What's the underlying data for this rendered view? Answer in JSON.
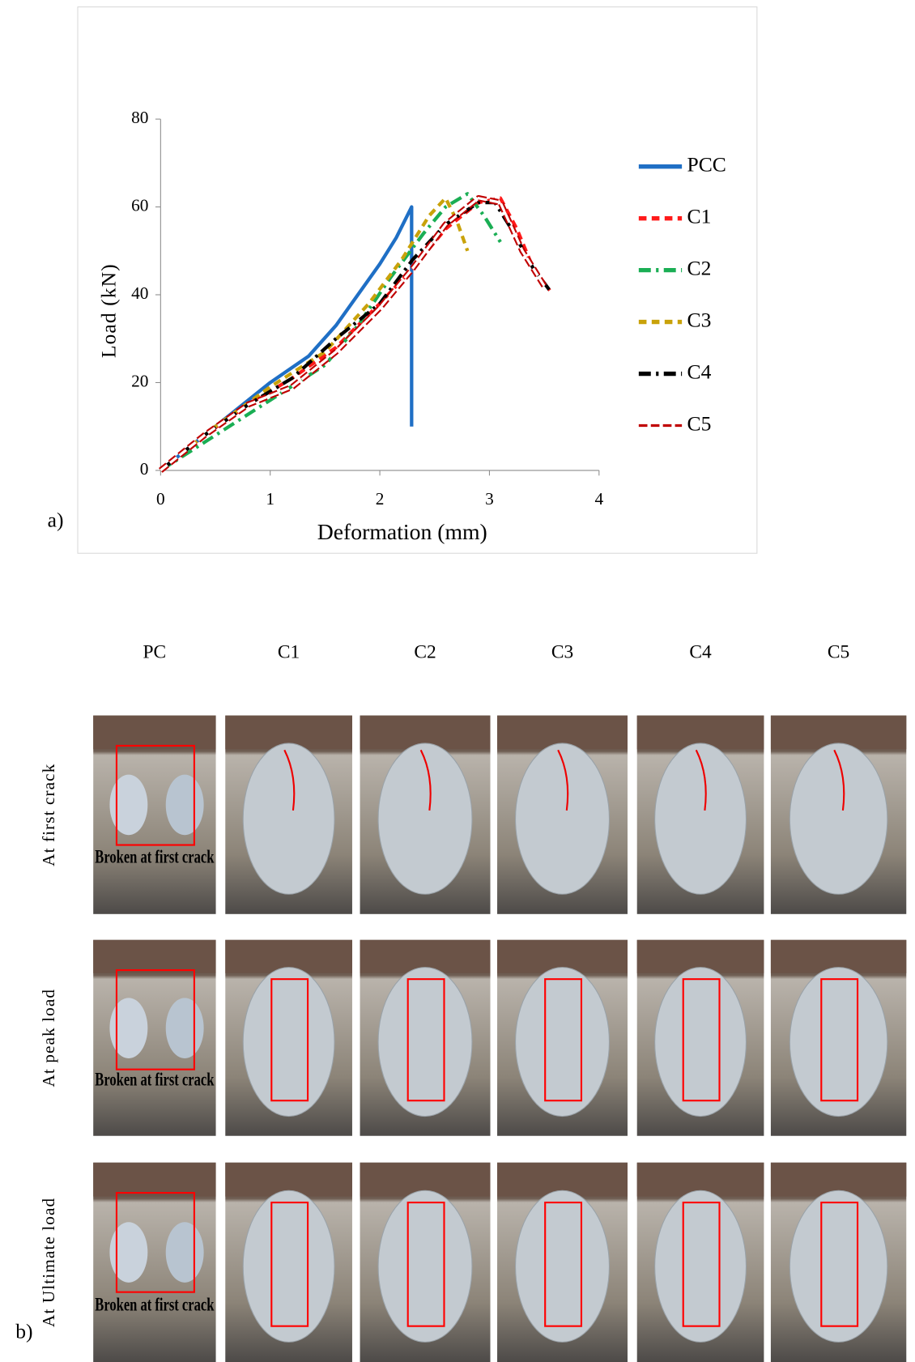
{
  "chart_data": {
    "type": "line",
    "x_label": "Deformation (mm)",
    "y_label": "Load (kN)",
    "xlim": [
      0,
      4
    ],
    "xticks": [
      0,
      1,
      2,
      3,
      4
    ],
    "ylim": [
      0,
      80
    ],
    "yticks": [
      0,
      20,
      40,
      60,
      80
    ],
    "grid": false,
    "legend": "right",
    "series": [
      {
        "name": "PCC",
        "color": "#1f6fc5",
        "style": "solid",
        "x": [
          0,
          0.5,
          1,
          1.35,
          1.6,
          1.8,
          2,
          2.15,
          2.29,
          2.29
        ],
        "values": [
          0,
          10,
          20,
          26,
          33,
          40,
          47,
          53,
          60,
          10
        ]
      },
      {
        "name": "C1",
        "color": "#ff1a1a",
        "style": "dashed",
        "x": [
          0,
          0.4,
          0.8,
          1.2,
          1.6,
          2,
          2.3,
          2.6,
          2.9,
          3.1,
          3.25,
          3.4,
          3.55
        ],
        "values": [
          0,
          8,
          15,
          21,
          28,
          38,
          46,
          55,
          61,
          62,
          55,
          46,
          41
        ]
      },
      {
        "name": "C2",
        "color": "#1aae54",
        "style": "dash-dot",
        "x": [
          0,
          0.5,
          1,
          1.5,
          1.8,
          2.1,
          2.4,
          2.6,
          2.8,
          2.95,
          3.1
        ],
        "values": [
          0,
          8,
          16,
          24,
          33,
          44,
          54,
          60,
          63,
          58,
          52
        ]
      },
      {
        "name": "C3",
        "color": "#c9a20a",
        "style": "dashed",
        "x": [
          0,
          0.5,
          1,
          1.5,
          1.9,
          2.2,
          2.45,
          2.6,
          2.7,
          2.8
        ],
        "values": [
          0,
          10,
          19,
          27,
          38,
          48,
          58,
          62,
          57,
          50
        ]
      },
      {
        "name": "C4",
        "color": "#000000",
        "style": "dash-dot",
        "x": [
          0,
          0.4,
          0.8,
          1.2,
          1.6,
          2,
          2.3,
          2.6,
          2.9,
          3.05,
          3.2,
          3.4,
          3.55
        ],
        "values": [
          0,
          8,
          15,
          21,
          30,
          38,
          48,
          56,
          61,
          61,
          55,
          46,
          41
        ]
      },
      {
        "name": "C5",
        "color": "#c00000",
        "style": "hollow-box",
        "x": [
          0,
          0.4,
          0.8,
          1.2,
          1.6,
          2,
          2.3,
          2.6,
          2.9,
          3.1,
          3.3,
          3.5
        ],
        "values": [
          0,
          8,
          15,
          19,
          27,
          37,
          46,
          56,
          62,
          61,
          50,
          42
        ]
      }
    ]
  },
  "panel_labels": [
    "a)",
    "b)"
  ],
  "photo_grid": {
    "columns": [
      "PC",
      "C1",
      "C2",
      "C3",
      "C4",
      "C5"
    ],
    "rows": [
      {
        "label": "At first crack",
        "note": "Broken at first crack"
      },
      {
        "label": "At peak load",
        "note": "Broken at first crack"
      },
      {
        "label": "At Ultimate load",
        "note": "Broken at first crack"
      }
    ]
  }
}
